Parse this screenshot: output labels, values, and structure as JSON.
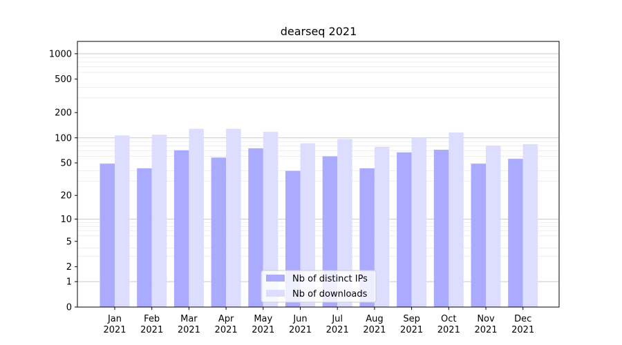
{
  "chart_data": {
    "type": "bar",
    "title": "dearseq 2021",
    "xlabel": "",
    "ylabel": "",
    "y_scale": "log(1+y)",
    "ylim": [
      0,
      1400
    ],
    "grid": "horizontal",
    "legend_position": "bottom-center",
    "y_ticks": [
      {
        "value": 0,
        "label": "0"
      },
      {
        "value": 1,
        "label": "1"
      },
      {
        "value": 2,
        "label": "2"
      },
      {
        "value": 5,
        "label": "5"
      },
      {
        "value": 10,
        "label": "10"
      },
      {
        "value": 20,
        "label": "20"
      },
      {
        "value": 50,
        "label": "50"
      },
      {
        "value": 100,
        "label": "100"
      },
      {
        "value": 200,
        "label": "200"
      },
      {
        "value": 500,
        "label": "500"
      },
      {
        "value": 1000,
        "label": "1000"
      }
    ],
    "categories": [
      {
        "month": "Jan",
        "year": "2021"
      },
      {
        "month": "Feb",
        "year": "2021"
      },
      {
        "month": "Mar",
        "year": "2021"
      },
      {
        "month": "Apr",
        "year": "2021"
      },
      {
        "month": "May",
        "year": "2021"
      },
      {
        "month": "Jun",
        "year": "2021"
      },
      {
        "month": "Jul",
        "year": "2021"
      },
      {
        "month": "Aug",
        "year": "2021"
      },
      {
        "month": "Sep",
        "year": "2021"
      },
      {
        "month": "Oct",
        "year": "2021"
      },
      {
        "month": "Nov",
        "year": "2021"
      },
      {
        "month": "Dec",
        "year": "2021"
      }
    ],
    "series": [
      {
        "name": "Nb of distinct IPs",
        "color": "#aaaaff",
        "values": [
          49,
          43,
          71,
          58,
          75,
          40,
          60,
          43,
          67,
          72,
          49,
          56
        ]
      },
      {
        "name": "Nb of downloads",
        "color": "#ddddff",
        "values": [
          107,
          109,
          128,
          128,
          118,
          86,
          97,
          78,
          100,
          116,
          81,
          84
        ]
      }
    ]
  }
}
